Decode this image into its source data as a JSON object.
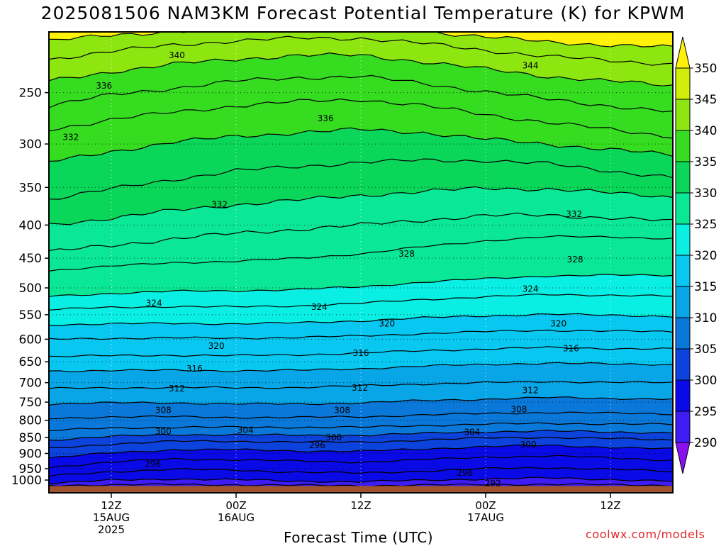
{
  "title": "2025081506 NAM3KM Forecast Potential Temperature (K) for KPWM",
  "xlabel": "Forecast Time (UTC)",
  "credit": "coolwx.com/models",
  "chart_data": {
    "type": "heatmap",
    "title": "2025081506 NAM3KM Forecast Potential Temperature (K) for KPWM",
    "xlabel": "Forecast Time (UTC)",
    "ylabel": "",
    "x_range_hours": [
      0,
      60
    ],
    "y_range_hpa": [
      1000,
      200
    ],
    "y_scale": "log-pressure",
    "y_ticks": [
      250,
      300,
      350,
      400,
      450,
      500,
      550,
      600,
      650,
      700,
      750,
      800,
      850,
      900,
      950,
      1000
    ],
    "x_ticks": [
      {
        "hour": 6,
        "lines": [
          "12Z",
          "15AUG",
          "2025"
        ]
      },
      {
        "hour": 18,
        "lines": [
          "00Z",
          "16AUG"
        ]
      },
      {
        "hour": 30,
        "lines": [
          "12Z"
        ]
      },
      {
        "hour": 42,
        "lines": [
          "00Z",
          "17AUG"
        ]
      },
      {
        "hour": 54,
        "lines": [
          "12Z"
        ]
      }
    ],
    "grid": true,
    "colorbar": {
      "levels": [
        290,
        295,
        300,
        305,
        310,
        315,
        320,
        325,
        330,
        335,
        340,
        345,
        350
      ],
      "colors": [
        "#8a10f0",
        "#3d1cf5",
        "#0a0ae6",
        "#0b43dc",
        "#0a78d8",
        "#08a6e6",
        "#08c8f2",
        "#0aefe4",
        "#0ae896",
        "#0ad65a",
        "#36dc20",
        "#8ee610",
        "#d2ed0a",
        "#fff208"
      ]
    },
    "ground_color": "#a0522d",
    "ground_hpa": 1010,
    "contour_interval": 2,
    "isentropes": [
      {
        "theta": 292,
        "p": [
          1008,
          1006,
          1005,
          1006,
          1008,
          1009,
          1007,
          1005,
          1004,
          1006,
          1008
        ]
      },
      {
        "theta": 294,
        "p": [
          1000,
          990,
          985,
          988,
          993,
          995,
          990,
          985,
          982,
          987,
          993
        ]
      },
      {
        "theta": 296,
        "p": [
          975,
          960,
          952,
          955,
          962,
          965,
          958,
          950,
          946,
          952,
          960
        ]
      },
      {
        "theta": 298,
        "p": [
          945,
          928,
          918,
          920,
          925,
          928,
          920,
          912,
          908,
          914,
          922
        ]
      },
      {
        "theta": 300,
        "p": [
          915,
          898,
          888,
          888,
          892,
          893,
          886,
          878,
          875,
          880,
          886
        ]
      },
      {
        "theta": 302,
        "p": [
          885,
          870,
          862,
          862,
          864,
          865,
          858,
          852,
          850,
          854,
          858
        ]
      },
      {
        "theta": 304,
        "p": [
          858,
          847,
          842,
          842,
          844,
          844,
          838,
          833,
          831,
          834,
          836
        ]
      },
      {
        "theta": 306,
        "p": [
          830,
          822,
          820,
          820,
          820,
          820,
          815,
          811,
          809,
          810,
          812
        ]
      },
      {
        "theta": 308,
        "p": [
          795,
          790,
          790,
          792,
          792,
          790,
          785,
          781,
          778,
          780,
          782
        ]
      },
      {
        "theta": 310,
        "p": [
          755,
          752,
          752,
          755,
          755,
          752,
          746,
          742,
          738,
          740,
          742
        ]
      },
      {
        "theta": 312,
        "p": [
          715,
          713,
          712,
          713,
          712,
          708,
          703,
          700,
          697,
          699,
          700
        ]
      },
      {
        "theta": 314,
        "p": [
          672,
          670,
          670,
          671,
          670,
          666,
          660,
          656,
          653,
          655,
          656
        ]
      },
      {
        "theta": 316,
        "p": [
          638,
          636,
          635,
          636,
          634,
          630,
          625,
          621,
          618,
          620,
          621
        ]
      },
      {
        "theta": 318,
        "p": [
          600,
          598,
          597,
          598,
          596,
          593,
          588,
          584,
          581,
          583,
          584
        ]
      },
      {
        "theta": 320,
        "p": [
          570,
          568,
          567,
          568,
          566,
          562,
          556,
          552,
          549,
          551,
          553
        ]
      },
      {
        "theta": 322,
        "p": [
          540,
          536,
          534,
          535,
          533,
          528,
          521,
          516,
          512,
          513,
          515
        ]
      },
      {
        "theta": 324,
        "p": [
          515,
          510,
          506,
          505,
          503,
          498,
          490,
          484,
          479,
          478,
          478
        ]
      },
      {
        "theta": 326,
        "p": [
          470,
          463,
          457,
          455,
          450,
          443,
          432,
          423,
          417,
          417,
          420
        ]
      },
      {
        "theta": 328,
        "p": [
          440,
          430,
          420,
          412,
          406,
          400,
          393,
          387,
          386,
          390,
          395
        ]
      },
      {
        "theta": 330,
        "p": [
          400,
          390,
          380,
          372,
          366,
          360,
          355,
          351,
          352,
          357,
          362
        ]
      },
      {
        "theta": 332,
        "p": [
          365,
          352,
          340,
          330,
          325,
          320,
          318,
          318,
          322,
          330,
          338
        ]
      },
      {
        "theta": 334,
        "p": [
          320,
          308,
          298,
          292,
          288,
          285,
          288,
          295,
          300,
          306,
          312
        ]
      },
      {
        "theta": 336,
        "p": [
          285,
          275,
          268,
          262,
          258,
          256,
          262,
          270,
          278,
          285,
          292
        ]
      },
      {
        "theta": 338,
        "p": [
          262,
          252,
          246,
          240,
          237,
          236,
          242,
          249,
          256,
          262,
          268
        ]
      },
      {
        "theta": 340,
        "p": [
          240,
          232,
          226,
          222,
          219,
          219,
          224,
          230,
          236,
          240,
          244
        ]
      },
      {
        "theta": 342,
        "p": [
          222,
          216,
          211,
          208,
          206,
          206,
          210,
          215,
          220,
          223,
          226
        ]
      },
      {
        "theta": 344,
        "p": [
          208,
          204,
          201,
          199,
          198,
          198,
          201,
          205,
          209,
          211,
          213
        ]
      }
    ],
    "isentrope_hours": [
      0,
      6,
      12,
      18,
      24,
      30,
      36,
      42,
      48,
      54,
      60
    ],
    "contour_labels": [
      {
        "text": "340",
        "hour": 12.3,
        "p": 219
      },
      {
        "text": "336",
        "hour": 5.3,
        "p": 244
      },
      {
        "text": "332",
        "hour": 2.1,
        "p": 293
      },
      {
        "text": "336",
        "hour": 26.6,
        "p": 274
      },
      {
        "text": "344",
        "hour": 46.3,
        "p": 227
      },
      {
        "text": "332",
        "hour": 16.4,
        "p": 372
      },
      {
        "text": "332",
        "hour": 50.5,
        "p": 385
      },
      {
        "text": "328",
        "hour": 34.4,
        "p": 443
      },
      {
        "text": "328",
        "hour": 50.6,
        "p": 452
      },
      {
        "text": "324",
        "hour": 10.1,
        "p": 528
      },
      {
        "text": "324",
        "hour": 26.0,
        "p": 535
      },
      {
        "text": "324",
        "hour": 46.3,
        "p": 502
      },
      {
        "text": "320",
        "hour": 32.5,
        "p": 568
      },
      {
        "text": "320",
        "hour": 49.0,
        "p": 568
      },
      {
        "text": "320",
        "hour": 16.1,
        "p": 615
      },
      {
        "text": "316",
        "hour": 30.0,
        "p": 630
      },
      {
        "text": "316",
        "hour": 50.2,
        "p": 620
      },
      {
        "text": "316",
        "hour": 14.0,
        "p": 666
      },
      {
        "text": "312",
        "hour": 12.3,
        "p": 715
      },
      {
        "text": "312",
        "hour": 29.9,
        "p": 713
      },
      {
        "text": "312",
        "hour": 46.3,
        "p": 719
      },
      {
        "text": "308",
        "hour": 11.0,
        "p": 772
      },
      {
        "text": "308",
        "hour": 28.2,
        "p": 772
      },
      {
        "text": "308",
        "hour": 45.2,
        "p": 770
      },
      {
        "text": "300",
        "hour": 11.0,
        "p": 832
      },
      {
        "text": "304",
        "hour": 18.9,
        "p": 828
      },
      {
        "text": "300",
        "hour": 27.4,
        "p": 850
      },
      {
        "text": "304",
        "hour": 40.7,
        "p": 835
      },
      {
        "text": "300",
        "hour": 46.1,
        "p": 872
      },
      {
        "text": "296",
        "hour": 25.8,
        "p": 874
      },
      {
        "text": "296",
        "hour": 10.0,
        "p": 935
      },
      {
        "text": "296",
        "hour": 40.0,
        "p": 965
      },
      {
        "text": "292",
        "hour": 42.7,
        "p": 1000
      }
    ]
  }
}
